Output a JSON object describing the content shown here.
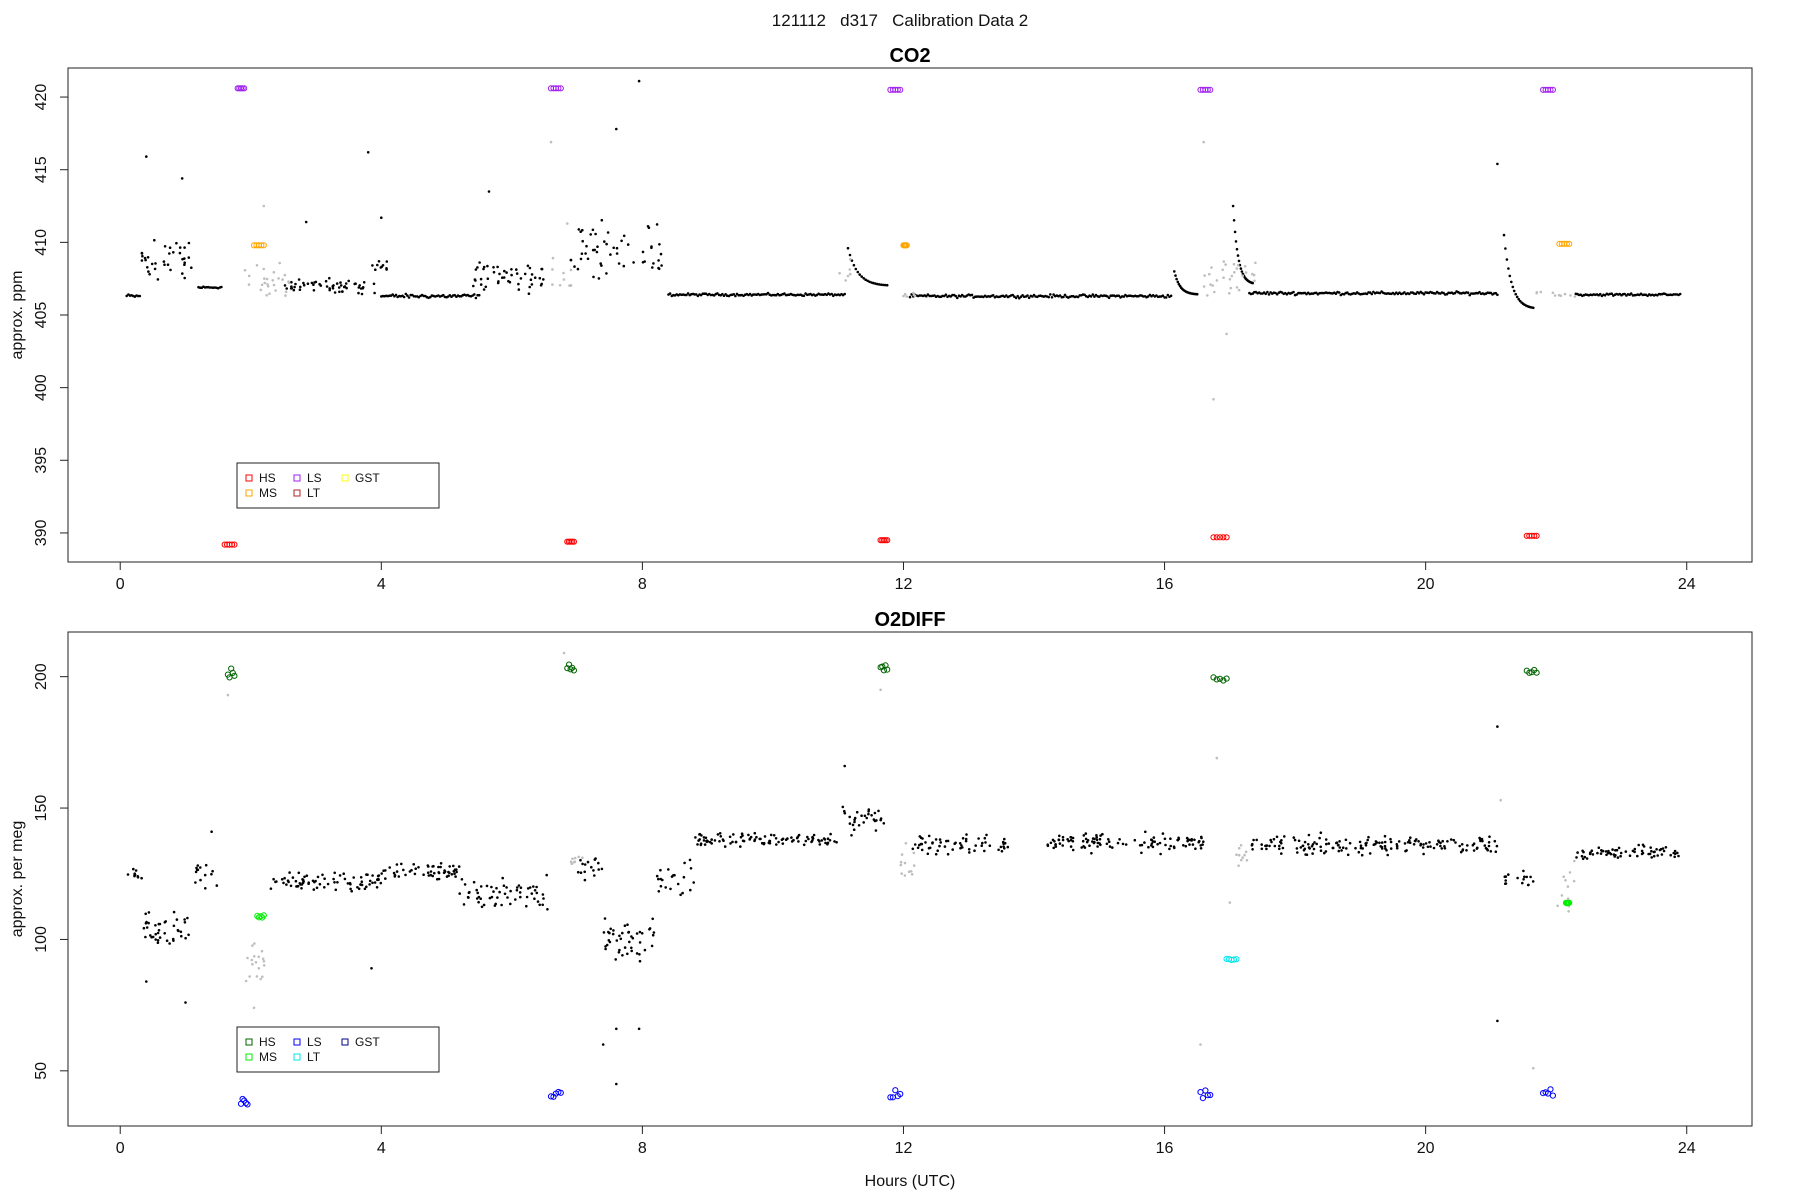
{
  "figure": {
    "title": "121112   d317   Calibration Data 2"
  },
  "colors": {
    "HS_co2": "#ff0000",
    "MS_co2": "#ffa500",
    "LS_co2": "#a020f0",
    "LT_co2": "#b22222",
    "GST_co2": "#ffff00",
    "HS_o2": "#006400",
    "MS_o2": "#00ee00",
    "LS_o2": "#0000ff",
    "LT_o2": "#00e5ee",
    "GST_o2": "#00008b",
    "ambient": "#000000",
    "flush": "#bebebe"
  },
  "chart_data": [
    {
      "type": "scatter",
      "title": "CO2",
      "xlabel": "",
      "ylabel": "approx. ppm",
      "xlim": [
        -0.8,
        25.0
      ],
      "ylim": [
        388.0,
        422.0
      ],
      "xticks": [
        0,
        4,
        8,
        12,
        16,
        20,
        24
      ],
      "yticks": [
        390,
        395,
        400,
        405,
        410,
        415,
        420
      ],
      "grid": false,
      "legend_position": "bottom-left",
      "legend": [
        {
          "name": "HS",
          "color_key": "HS_co2"
        },
        {
          "name": "MS",
          "color_key": "MS_co2"
        },
        {
          "name": "LS",
          "color_key": "LS_co2"
        },
        {
          "name": "LT",
          "color_key": "LT_co2"
        },
        {
          "name": "GST",
          "color_key": "GST_co2"
        }
      ],
      "baseline_segments": [
        {
          "x0": 0.1,
          "x1": 0.3,
          "y": 406.3,
          "noise": 0.2
        },
        {
          "x0": 1.2,
          "x1": 1.55,
          "y": 406.9,
          "noise": 0.1
        },
        {
          "x0": 4.0,
          "x1": 5.5,
          "y": 406.3,
          "noise": 0.2
        },
        {
          "x0": 8.4,
          "x1": 11.1,
          "y": 406.4,
          "noise": 0.12
        },
        {
          "x0": 12.1,
          "x1": 16.1,
          "y": 406.3,
          "noise": 0.15
        },
        {
          "x0": 17.3,
          "x1": 21.1,
          "y": 406.5,
          "noise": 0.15
        },
        {
          "x0": 22.3,
          "x1": 23.9,
          "y": 406.4,
          "noise": 0.12
        }
      ],
      "noisy_segments": [
        {
          "x0": 0.3,
          "x1": 1.1,
          "y": 408.8,
          "spread": 2.2,
          "n": 36
        },
        {
          "x0": 2.5,
          "x1": 3.9,
          "y": 407.0,
          "spread": 0.8,
          "n": 55
        },
        {
          "x0": 3.8,
          "x1": 4.1,
          "y": 408.3,
          "spread": 0.6,
          "n": 10
        },
        {
          "x0": 5.4,
          "x1": 6.5,
          "y": 407.6,
          "spread": 1.4,
          "n": 48
        },
        {
          "x0": 6.9,
          "x1": 8.3,
          "y": 409.0,
          "spread": 3.5,
          "n": 55
        }
      ],
      "flush_segments": [
        {
          "x0": 1.9,
          "x1": 2.6,
          "y": 407.2,
          "spread": 1.8,
          "n": 26
        },
        {
          "x0": 6.6,
          "x1": 7.0,
          "y": 407.5,
          "spread": 2.0,
          "n": 10
        },
        {
          "x0": 11.0,
          "x1": 11.2,
          "y": 408.0,
          "spread": 1.0,
          "n": 6
        },
        {
          "x0": 12.0,
          "x1": 12.2,
          "y": 406.3,
          "spread": 0.3,
          "n": 6
        },
        {
          "x0": 16.6,
          "x1": 17.4,
          "y": 407.5,
          "spread": 2.2,
          "n": 30
        },
        {
          "x0": 21.7,
          "x1": 22.3,
          "y": 406.5,
          "spread": 0.4,
          "n": 10
        }
      ],
      "decay_segments": [
        {
          "x0": 11.15,
          "x1": 11.75,
          "y0": 409.6,
          "y1": 407.0
        },
        {
          "x0": 16.15,
          "x1": 16.5,
          "y0": 408.0,
          "y1": 406.4
        },
        {
          "x0": 21.2,
          "x1": 21.65,
          "y0": 410.5,
          "y1": 405.4
        },
        {
          "x0": 17.05,
          "x1": 17.35,
          "y0": 412.5,
          "y1": 407.1
        }
      ],
      "outliers": [
        {
          "x": 0.4,
          "y": 415.9
        },
        {
          "x": 3.8,
          "y": 416.2
        },
        {
          "x": 4.0,
          "y": 411.7
        },
        {
          "x": 2.85,
          "y": 411.4
        },
        {
          "x": 5.65,
          "y": 413.5
        },
        {
          "x": 7.95,
          "y": 421.1
        },
        {
          "x": 7.6,
          "y": 417.8
        },
        {
          "x": 21.1,
          "y": 415.4
        },
        {
          "x": 0.95,
          "y": 414.4
        }
      ],
      "flush_outliers": [
        {
          "x": 6.6,
          "y": 416.9
        },
        {
          "x": 16.6,
          "y": 416.9
        },
        {
          "x": 16.75,
          "y": 399.2
        },
        {
          "x": 16.95,
          "y": 403.7
        },
        {
          "x": 2.2,
          "y": 412.5
        },
        {
          "x": 6.85,
          "y": 411.3
        }
      ],
      "cal_clusters": [
        {
          "label": "HS",
          "color_key": "HS_co2",
          "x0": 1.6,
          "x1": 1.75,
          "y": 389.2
        },
        {
          "label": "LS",
          "color_key": "LS_co2",
          "x0": 1.8,
          "x1": 1.9,
          "y": 420.6
        },
        {
          "label": "MS",
          "color_key": "MS_co2",
          "x0": 2.05,
          "x1": 2.2,
          "y": 409.8
        },
        {
          "label": "LS",
          "color_key": "LS_co2",
          "x0": 6.6,
          "x1": 6.75,
          "y": 420.6
        },
        {
          "label": "HS",
          "color_key": "HS_co2",
          "x0": 6.85,
          "x1": 6.95,
          "y": 389.4
        },
        {
          "label": "HS",
          "color_key": "HS_co2",
          "x0": 11.65,
          "x1": 11.75,
          "y": 389.5
        },
        {
          "label": "LS",
          "color_key": "LS_co2",
          "x0": 11.8,
          "x1": 11.95,
          "y": 420.5
        },
        {
          "label": "MS",
          "color_key": "MS_co2",
          "x0": 12.0,
          "x1": 12.05,
          "y": 409.8
        },
        {
          "label": "LS",
          "color_key": "LS_co2",
          "x0": 16.55,
          "x1": 16.7,
          "y": 420.5
        },
        {
          "label": "HS",
          "color_key": "HS_co2",
          "x0": 16.75,
          "x1": 16.95,
          "y": 389.7
        },
        {
          "label": "HS",
          "color_key": "HS_co2",
          "x0": 21.55,
          "x1": 21.7,
          "y": 389.8
        },
        {
          "label": "LS",
          "color_key": "LS_co2",
          "x0": 21.8,
          "x1": 21.95,
          "y": 420.5
        },
        {
          "label": "MS",
          "color_key": "MS_co2",
          "x0": 22.05,
          "x1": 22.2,
          "y": 409.9
        }
      ]
    },
    {
      "type": "scatter",
      "title": "O2DIFF",
      "xlabel": "Hours (UTC)",
      "ylabel": "approx. per meg",
      "xlim": [
        -0.8,
        25.0
      ],
      "ylim": [
        29.0,
        217.0
      ],
      "xticks": [
        0,
        4,
        8,
        12,
        16,
        20,
        24
      ],
      "yticks": [
        50,
        100,
        150,
        200
      ],
      "grid": false,
      "legend_position": "bottom-left",
      "legend": [
        {
          "name": "HS",
          "color_key": "HS_o2"
        },
        {
          "name": "MS",
          "color_key": "MS_o2"
        },
        {
          "name": "LS",
          "color_key": "LS_o2"
        },
        {
          "name": "LT",
          "color_key": "LT_o2"
        },
        {
          "name": "GST",
          "color_key": "GST_o2"
        }
      ],
      "noisy_segments": [
        {
          "x0": 0.1,
          "x1": 0.35,
          "y": 124,
          "spread": 4,
          "n": 10
        },
        {
          "x0": 0.35,
          "x1": 1.05,
          "y": 104,
          "spread": 10,
          "n": 40
        },
        {
          "x0": 1.1,
          "x1": 1.5,
          "y": 124,
          "spread": 7,
          "n": 14
        },
        {
          "x0": 2.3,
          "x1": 4.0,
          "y": 122,
          "spread": 5,
          "n": 80
        },
        {
          "x0": 4.0,
          "x1": 5.2,
          "y": 126,
          "spread": 5,
          "n": 55
        },
        {
          "x0": 5.2,
          "x1": 6.55,
          "y": 118,
          "spread": 8,
          "n": 60
        },
        {
          "x0": 7.0,
          "x1": 7.4,
          "y": 127,
          "spread": 6,
          "n": 16
        },
        {
          "x0": 7.4,
          "x1": 8.2,
          "y": 100,
          "spread": 12,
          "n": 45
        },
        {
          "x0": 8.2,
          "x1": 8.8,
          "y": 122,
          "spread": 10,
          "n": 22
        },
        {
          "x0": 8.8,
          "x1": 11.0,
          "y": 138,
          "spread": 4,
          "n": 100
        },
        {
          "x0": 11.0,
          "x1": 11.7,
          "y": 146,
          "spread": 9,
          "n": 30
        },
        {
          "x0": 12.1,
          "x1": 13.6,
          "y": 136,
          "spread": 6,
          "n": 60
        },
        {
          "x0": 14.2,
          "x1": 16.6,
          "y": 137,
          "spread": 5,
          "n": 110
        },
        {
          "x0": 17.3,
          "x1": 21.1,
          "y": 136,
          "spread": 5,
          "n": 170
        },
        {
          "x0": 21.2,
          "x1": 21.65,
          "y": 122,
          "spread": 6,
          "n": 16
        },
        {
          "x0": 22.3,
          "x1": 23.9,
          "y": 133,
          "spread": 4,
          "n": 70
        }
      ],
      "flush_segments": [
        {
          "x0": 1.9,
          "x1": 2.3,
          "y": 92,
          "spread": 12,
          "n": 18
        },
        {
          "x0": 6.9,
          "x1": 7.1,
          "y": 132,
          "spread": 5,
          "n": 8
        },
        {
          "x0": 11.95,
          "x1": 12.2,
          "y": 130,
          "spread": 12,
          "n": 12
        },
        {
          "x0": 17.1,
          "x1": 17.3,
          "y": 132,
          "spread": 6,
          "n": 10
        },
        {
          "x0": 22.0,
          "x1": 22.3,
          "y": 118,
          "spread": 14,
          "n": 12
        }
      ],
      "outliers": [
        {
          "x": 0.4,
          "y": 84
        },
        {
          "x": 1.0,
          "y": 76
        },
        {
          "x": 1.4,
          "y": 141
        },
        {
          "x": 3.85,
          "y": 89
        },
        {
          "x": 7.6,
          "y": 45
        },
        {
          "x": 7.6,
          "y": 66
        },
        {
          "x": 7.95,
          "y": 66
        },
        {
          "x": 7.4,
          "y": 60
        },
        {
          "x": 21.1,
          "y": 181
        },
        {
          "x": 21.1,
          "y": 69
        },
        {
          "x": 11.1,
          "y": 166
        }
      ],
      "flush_outliers": [
        {
          "x": 1.65,
          "y": 193
        },
        {
          "x": 6.8,
          "y": 209
        },
        {
          "x": 11.65,
          "y": 195
        },
        {
          "x": 16.8,
          "y": 169
        },
        {
          "x": 16.55,
          "y": 60
        },
        {
          "x": 21.65,
          "y": 51
        },
        {
          "x": 21.15,
          "y": 153
        },
        {
          "x": 2.05,
          "y": 74
        },
        {
          "x": 17.0,
          "y": 114
        }
      ],
      "cal_clusters": [
        {
          "label": "HS",
          "color_key": "HS_o2",
          "x0": 1.65,
          "x1": 1.75,
          "y": 201,
          "spread": 6
        },
        {
          "label": "LS",
          "color_key": "LS_o2",
          "x0": 1.85,
          "x1": 1.95,
          "y": 38,
          "spread": 2
        },
        {
          "label": "MS",
          "color_key": "MS_o2",
          "x0": 2.1,
          "x1": 2.2,
          "y": 109,
          "spread": 1
        },
        {
          "label": "LS",
          "color_key": "LS_o2",
          "x0": 6.6,
          "x1": 6.75,
          "y": 41,
          "spread": 2
        },
        {
          "label": "HS",
          "color_key": "HS_o2",
          "x0": 6.85,
          "x1": 6.95,
          "y": 204,
          "spread": 3
        },
        {
          "label": "HS",
          "color_key": "HS_o2",
          "x0": 11.65,
          "x1": 11.75,
          "y": 204,
          "spread": 3
        },
        {
          "label": "LS",
          "color_key": "LS_o2",
          "x0": 11.8,
          "x1": 11.95,
          "y": 41,
          "spread": 3
        },
        {
          "label": "LS",
          "color_key": "LS_o2",
          "x0": 16.55,
          "x1": 16.7,
          "y": 42,
          "spread": 3
        },
        {
          "label": "HS",
          "color_key": "HS_o2",
          "x0": 16.75,
          "x1": 16.95,
          "y": 199,
          "spread": 1.5
        },
        {
          "label": "LT",
          "color_key": "LT_o2",
          "x0": 16.95,
          "x1": 17.1,
          "y": 92.5,
          "spread": 0.5
        },
        {
          "label": "HS",
          "color_key": "HS_o2",
          "x0": 21.55,
          "x1": 21.7,
          "y": 202,
          "spread": 2
        },
        {
          "label": "LS",
          "color_key": "LS_o2",
          "x0": 21.8,
          "x1": 21.95,
          "y": 42,
          "spread": 2
        },
        {
          "label": "MS",
          "color_key": "MS_o2",
          "x0": 22.15,
          "x1": 22.2,
          "y": 114,
          "spread": 0.5
        }
      ]
    }
  ]
}
